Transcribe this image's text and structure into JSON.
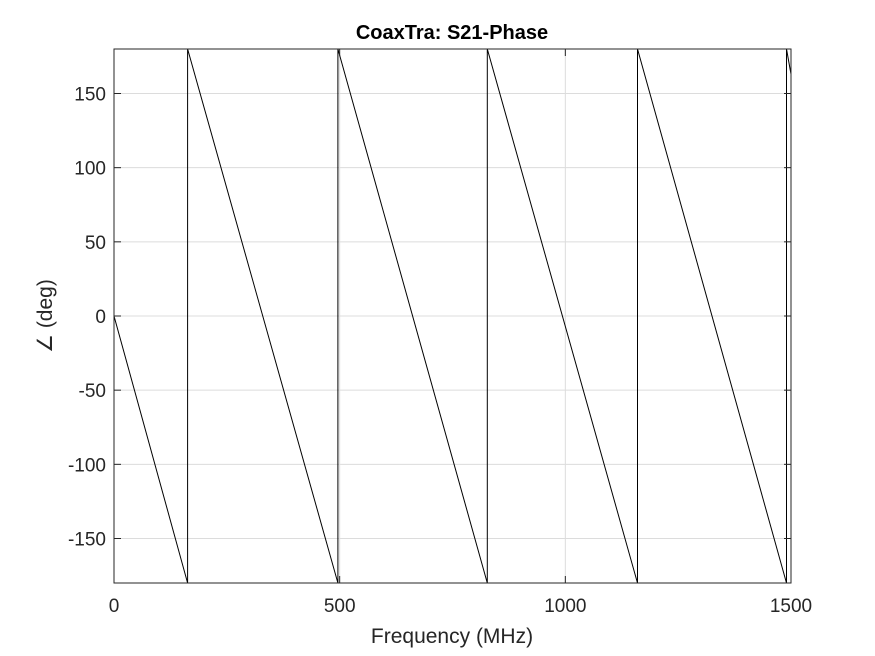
{
  "chart_data": {
    "type": "line",
    "title": "CoaxTra: S21-Phase",
    "xlabel": "Frequency (MHz)",
    "ylabel": "∠ (deg)",
    "xlim": [
      0,
      1500
    ],
    "ylim": [
      -180,
      180
    ],
    "xticks": [
      0,
      500,
      1000,
      1500
    ],
    "xtick_labels": [
      "0",
      "500",
      "1000",
      "1500"
    ],
    "yticks": [
      150,
      100,
      50,
      0,
      -50,
      -100,
      -150
    ],
    "ytick_labels": [
      "150",
      "100",
      "50",
      "0",
      "-50",
      "-100",
      "-150"
    ],
    "grid": true,
    "legend": "none",
    "line_color": "#000000",
    "series": [
      {
        "x": [
          0,
          163,
          163,
          496,
          496,
          827,
          827,
          1160,
          1160,
          1490,
          1490,
          1500
        ],
        "y": [
          0,
          -180,
          180,
          -180,
          180,
          -180,
          180,
          -180,
          180,
          -180,
          180,
          163
        ]
      }
    ]
  }
}
